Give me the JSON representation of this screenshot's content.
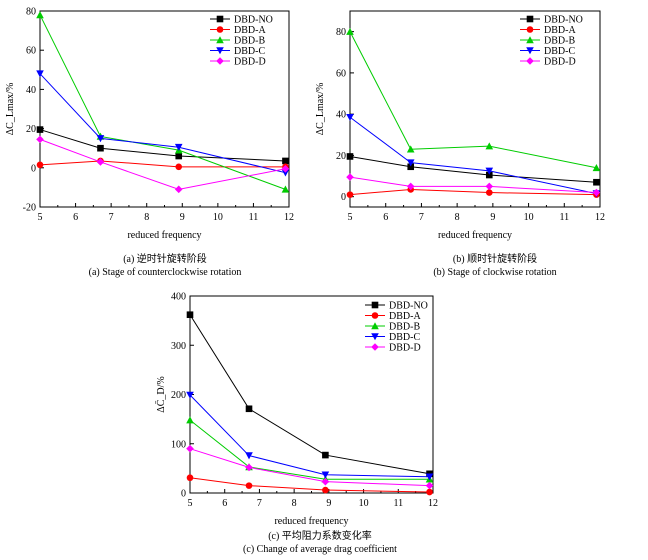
{
  "captions": [
    {
      "zh": "(a) 逆时针旋转阶段",
      "en": "(a) Stage of counterclockwise rotation"
    },
    {
      "zh": "(b) 顺时针旋转阶段",
      "en": "(b) Stage of clockwise rotation"
    },
    {
      "zh": "(c) 平均阻力系数变化率",
      "en": "(c) Change of average drag coefficient"
    }
  ],
  "chart_data": [
    {
      "type": "line",
      "xlabel": "reduced frequency",
      "ylabel": "ΔC_Lmax/%",
      "xlim": [
        5,
        12
      ],
      "ylim": [
        -20,
        80
      ],
      "xticks": [
        5,
        6,
        7,
        8,
        9,
        10,
        11,
        12
      ],
      "yticks": [
        -20,
        0,
        20,
        40,
        60,
        80
      ],
      "legend_position": "top-right",
      "x": [
        5.0,
        6.7,
        8.9,
        11.9
      ],
      "series": [
        {
          "name": "DBD-NO",
          "color": "#000000",
          "marker": "square",
          "values": [
            19.5,
            10,
            6,
            3.5
          ]
        },
        {
          "name": "DBD-A",
          "color": "#ff0000",
          "marker": "circle",
          "values": [
            1.5,
            3.5,
            0.5,
            0.5
          ]
        },
        {
          "name": "DBD-B",
          "color": "#00cc00",
          "marker": "triangle-up",
          "values": [
            78,
            16,
            9,
            -11
          ]
        },
        {
          "name": "DBD-C",
          "color": "#0000ff",
          "marker": "triangle-down",
          "values": [
            48,
            15,
            10.5,
            -2.5
          ]
        },
        {
          "name": "DBD-D",
          "color": "#ff00ff",
          "marker": "diamond",
          "values": [
            14.5,
            3,
            -11,
            -0.5
          ]
        }
      ]
    },
    {
      "type": "line",
      "xlabel": "reduced frequency",
      "ylabel": "ΔC_Lmax/%",
      "xlim": [
        5,
        12
      ],
      "ylim": [
        -5,
        90
      ],
      "xticks": [
        5,
        6,
        7,
        8,
        9,
        10,
        11,
        12
      ],
      "yticks": [
        0,
        20,
        40,
        60,
        80
      ],
      "legend_position": "top-right",
      "x": [
        5.0,
        6.7,
        8.9,
        11.9
      ],
      "series": [
        {
          "name": "DBD-NO",
          "color": "#000000",
          "marker": "square",
          "values": [
            19.5,
            14.5,
            10.5,
            7
          ]
        },
        {
          "name": "DBD-A",
          "color": "#ff0000",
          "marker": "circle",
          "values": [
            1,
            3.5,
            2,
            1
          ]
        },
        {
          "name": "DBD-B",
          "color": "#00cc00",
          "marker": "triangle-up",
          "values": [
            80,
            23,
            24.5,
            14
          ]
        },
        {
          "name": "DBD-C",
          "color": "#0000ff",
          "marker": "triangle-down",
          "values": [
            38.5,
            16.5,
            12.5,
            1.5
          ]
        },
        {
          "name": "DBD-D",
          "color": "#ff00ff",
          "marker": "diamond",
          "values": [
            9.5,
            5,
            5,
            2
          ]
        }
      ]
    },
    {
      "type": "line",
      "xlabel": "reduced frequency",
      "ylabel": "ΔC̄_D/%",
      "xlim": [
        5,
        12
      ],
      "ylim": [
        0,
        400
      ],
      "xticks": [
        5,
        6,
        7,
        8,
        9,
        10,
        11,
        12
      ],
      "yticks": [
        0,
        100,
        200,
        300,
        400
      ],
      "legend_position": "top-right",
      "x": [
        5.0,
        6.7,
        8.9,
        11.9
      ],
      "series": [
        {
          "name": "DBD-NO",
          "color": "#000000",
          "marker": "square",
          "values": [
            362,
            171,
            77,
            39
          ]
        },
        {
          "name": "DBD-A",
          "color": "#ff0000",
          "marker": "circle",
          "values": [
            31,
            15,
            6,
            2
          ]
        },
        {
          "name": "DBD-B",
          "color": "#00cc00",
          "marker": "triangle-up",
          "values": [
            148,
            53,
            28,
            28
          ]
        },
        {
          "name": "DBD-C",
          "color": "#0000ff",
          "marker": "triangle-down",
          "values": [
            199,
            76,
            37,
            33
          ]
        },
        {
          "name": "DBD-D",
          "color": "#ff00ff",
          "marker": "diamond",
          "values": [
            90,
            52,
            23,
            15
          ]
        }
      ]
    }
  ]
}
